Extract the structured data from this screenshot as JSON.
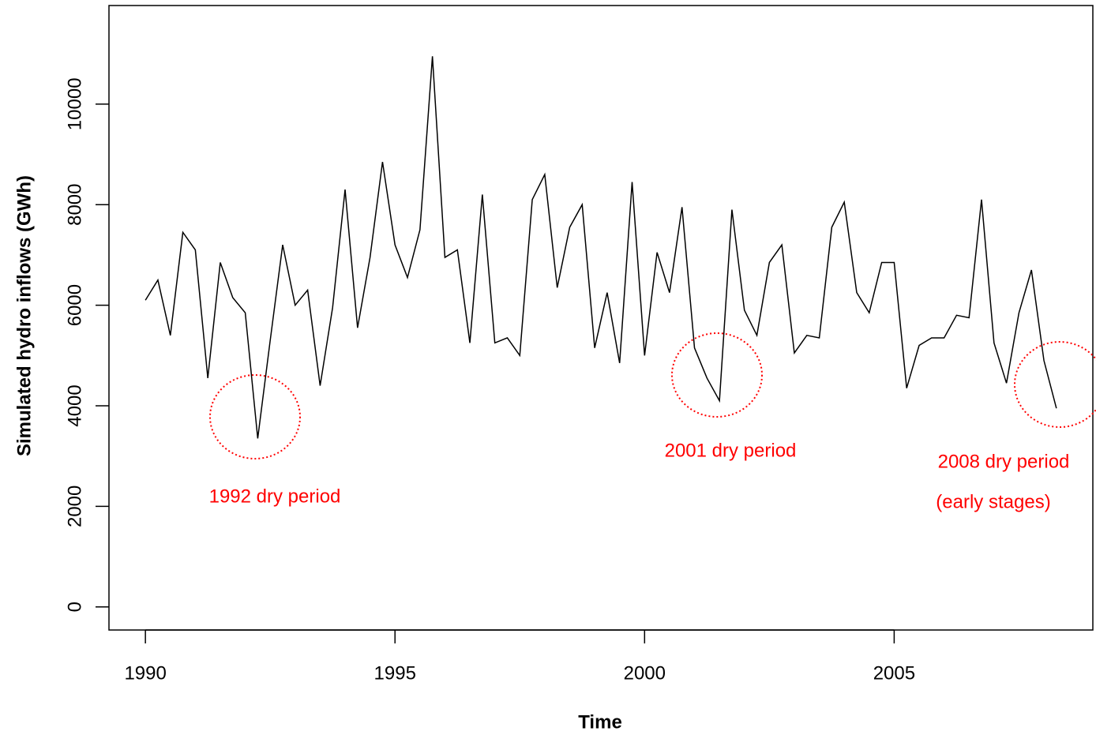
{
  "chart_data": {
    "type": "line",
    "x_label": "Time",
    "y_label": "Simulated hydro inflows (GWh)",
    "x": [
      1990,
      1990.25,
      1990.5,
      1990.75,
      1991,
      1991.25,
      1991.5,
      1991.75,
      1992,
      1992.25,
      1992.5,
      1992.75,
      1993,
      1993.25,
      1993.5,
      1993.75,
      1994,
      1994.25,
      1994.5,
      1994.75,
      1995,
      1995.25,
      1995.5,
      1995.75,
      1996,
      1996.25,
      1996.5,
      1996.75,
      1997,
      1997.25,
      1997.5,
      1997.75,
      1998,
      1998.25,
      1998.5,
      1998.75,
      1999,
      1999.25,
      1999.5,
      1999.75,
      2000,
      2000.25,
      2000.5,
      2000.75,
      2001,
      2001.25,
      2001.5,
      2001.75,
      2002,
      2002.25,
      2002.5,
      2002.75,
      2003,
      2003.25,
      2003.5,
      2003.75,
      2004,
      2004.25,
      2004.5,
      2004.75,
      2005,
      2005.25,
      2005.5,
      2005.75,
      2006,
      2006.25,
      2006.5,
      2006.75,
      2007,
      2007.25,
      2007.5,
      2007.75,
      2008,
      2008.25
    ],
    "series": [
      {
        "color": "#000000",
        "values": [
          6100,
          6500,
          5400,
          7450,
          7100,
          4550,
          6850,
          6150,
          5850,
          3350,
          5300,
          7200,
          6000,
          6300,
          4400,
          5950,
          8300,
          5550,
          6950,
          8850,
          7200,
          6550,
          7500,
          10950,
          6950,
          7100,
          5250,
          8200,
          5250,
          5350,
          5000,
          8100,
          8600,
          6350,
          7550,
          8000,
          5150,
          6250,
          4850,
          8450,
          5000,
          7050,
          6250,
          7950,
          5150,
          4550,
          4100,
          7900,
          5900,
          5400,
          6850,
          7200,
          5050,
          5400,
          5350,
          7550,
          8050,
          6250,
          5850,
          6850,
          6850,
          4350,
          5200,
          5350,
          5350,
          5800,
          5750,
          8100,
          5250,
          4450,
          5850,
          6700,
          4900,
          3950
        ]
      }
    ],
    "xlim": [
      1989.27,
      2008.98
    ],
    "ylim": [
      -460,
      11960
    ],
    "xticks": [
      1990,
      1995,
      2000,
      2005
    ],
    "yticks": [
      0,
      2000,
      4000,
      6000,
      8000,
      10000
    ],
    "annotation_color": "#ff0000",
    "annotations": [
      {
        "text": "1992 dry period"
      },
      {
        "text": "2001 dry period"
      },
      {
        "text": "2008 dry period"
      },
      {
        "text": "(early stages)"
      }
    ]
  }
}
